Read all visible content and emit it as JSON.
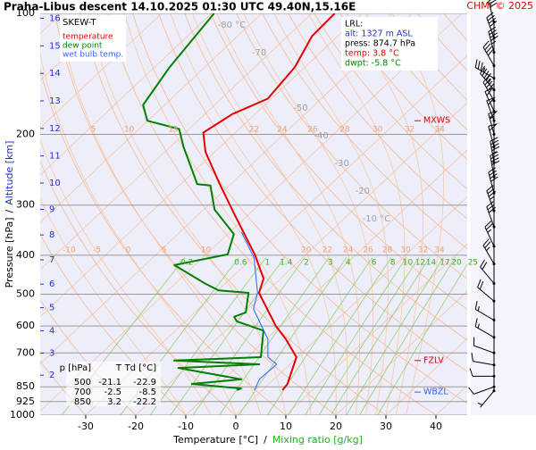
{
  "chart_data": {
    "type": "skew-t",
    "title": "Praha-Libus   descent   14.10.2025 01:30 UTC   49.40N,15.16E",
    "credit": "CHMI © 2025",
    "xlabel": {
      "text": "Temperature [°C]",
      "separator": "/",
      "secondary": "Mixing ratio [g/kg]"
    },
    "ylabel": {
      "text": "Pressure [hPa]",
      "separator": "/",
      "secondary": "Altitude [km]"
    },
    "xlim": [
      -39.1,
      46.25
    ],
    "ylim": [
      1000,
      100
    ],
    "log_y": true,
    "xticks": [
      -30,
      -20,
      -10,
      0,
      10,
      20,
      30,
      40
    ],
    "yticks": [
      100,
      200,
      300,
      400,
      500,
      600,
      700,
      850,
      925,
      1000
    ],
    "altitude_ticks": [
      2,
      3,
      4,
      5,
      6,
      7,
      8,
      9,
      10,
      11,
      12,
      13,
      14,
      15,
      16
    ],
    "isotherms": [
      -120,
      -110,
      -100,
      -90,
      -80,
      -70,
      -60,
      -50,
      -40,
      -30,
      -20,
      -10,
      0,
      10,
      20,
      30,
      40
    ],
    "isotherm_labels": [
      {
        "value": -80,
        "label": "-80 °C"
      },
      -70,
      -50,
      -40,
      -30,
      -20,
      {
        "value": -10,
        "label": "-10 °C"
      }
    ],
    "dry_adiabats": [
      -30,
      -20,
      -10,
      0,
      10,
      20,
      30,
      40,
      50,
      60,
      70,
      80,
      90,
      100,
      110,
      120,
      130,
      140,
      150,
      160,
      170,
      180
    ],
    "moist_adiabats": [
      -10,
      -5,
      0,
      5,
      10,
      15,
      20,
      22,
      24,
      26,
      28,
      30,
      32,
      34
    ],
    "moist_adiabat_labels_upper": [
      5,
      10,
      15,
      22,
      24,
      26,
      28,
      30,
      32,
      34
    ],
    "moist_adiabat_labels_lower": [
      -10,
      -5,
      0,
      5,
      10,
      20,
      22,
      24,
      26,
      28,
      30,
      32,
      34
    ],
    "mixing_ratios": [
      0.2,
      0.6,
      1,
      1.4,
      2,
      3,
      4,
      6,
      8,
      10,
      12,
      14,
      17,
      20,
      25
    ],
    "legend_title": "SKEW-T",
    "series": [
      {
        "name": "temperature",
        "color": "#e00000",
        "pressure": [
          866,
          836,
          717,
          647,
          600,
          496,
          457,
          398,
          316,
          264,
          221,
          198,
          178,
          163,
          136,
          114,
          100
        ],
        "values": [
          4.0,
          3.7,
          -0.2,
          -6.1,
          -10.9,
          -21.3,
          -23.4,
          -30.3,
          -42.9,
          -52.6,
          -61.9,
          -66.4,
          -64.5,
          -60.7,
          -62,
          -65.1,
          -65.4
        ]
      },
      {
        "name": "dew point",
        "color": "#008000",
        "pressure": [
          866,
          858,
          836,
          814,
          763,
          747,
          731,
          717,
          616,
          584,
          569,
          555,
          496,
          489,
          471,
          423,
          398,
          354,
          308,
          268,
          266,
          215,
          194,
          185,
          169,
          136,
          100
        ],
        "values": [
          -5.1,
          -4.6,
          -15.4,
          -6.5,
          -21.5,
          -6.1,
          -23.9,
          -7.3,
          -12.4,
          -19.7,
          -21.2,
          -19.8,
          -23.4,
          -29.9,
          -33.9,
          -44.1,
          -35.7,
          -38.8,
          -47.8,
          -53.8,
          -56.7,
          -67.3,
          -72,
          -80.1,
          -84.3,
          -87,
          -89.5
        ]
      },
      {
        "name": "wet bulb temp.",
        "color": "#3060ff",
        "pressure": [
          866,
          814,
          747,
          717,
          647,
          544,
          496,
          406,
          350
        ],
        "values": [
          -1.6,
          -2.9,
          -2.6,
          -5.9,
          -9.7,
          -19,
          -21.6,
          -29.7,
          -37.7
        ]
      }
    ],
    "lrl": {
      "title": "LRL:",
      "alt": "alt: 1327 m ASL",
      "press": "press: 874.7 hPa",
      "temp": "temp: 3.8 °C",
      "dwpt": "dwpt: -5.8 °C"
    },
    "levels": [
      {
        "label": "MXWS",
        "pressure": 185,
        "color": "#e00000"
      },
      {
        "label": "FZLV",
        "pressure": 731,
        "color": "#e00000"
      },
      {
        "label": "WBZL",
        "pressure": 876,
        "color": "#3060ff"
      }
    ],
    "table": {
      "header": [
        "p [hPa]",
        "T",
        "Td [°C]"
      ],
      "rows": [
        [
          500,
          -21.1,
          -22.9
        ],
        [
          700,
          -2.5,
          -8.5
        ],
        [
          850,
          3.2,
          -22.2
        ]
      ]
    },
    "wind": {
      "pressure": [
        105,
        115,
        125,
        135,
        145,
        155,
        165,
        175,
        185,
        200,
        215,
        235,
        255,
        280,
        310,
        340,
        380,
        420,
        470,
        520,
        580,
        640,
        700,
        750,
        800,
        850,
        870
      ],
      "direction": [
        345,
        340,
        345,
        330,
        300,
        320,
        330,
        335,
        340,
        345,
        345,
        350,
        350,
        345,
        340,
        340,
        335,
        330,
        320,
        310,
        300,
        300,
        290,
        280,
        270,
        250,
        220
      ],
      "speed": [
        30,
        40,
        45,
        40,
        35,
        45,
        40,
        50,
        50,
        55,
        50,
        45,
        40,
        40,
        35,
        30,
        25,
        25,
        20,
        20,
        15,
        15,
        10,
        10,
        10,
        10,
        5
      ]
    }
  }
}
